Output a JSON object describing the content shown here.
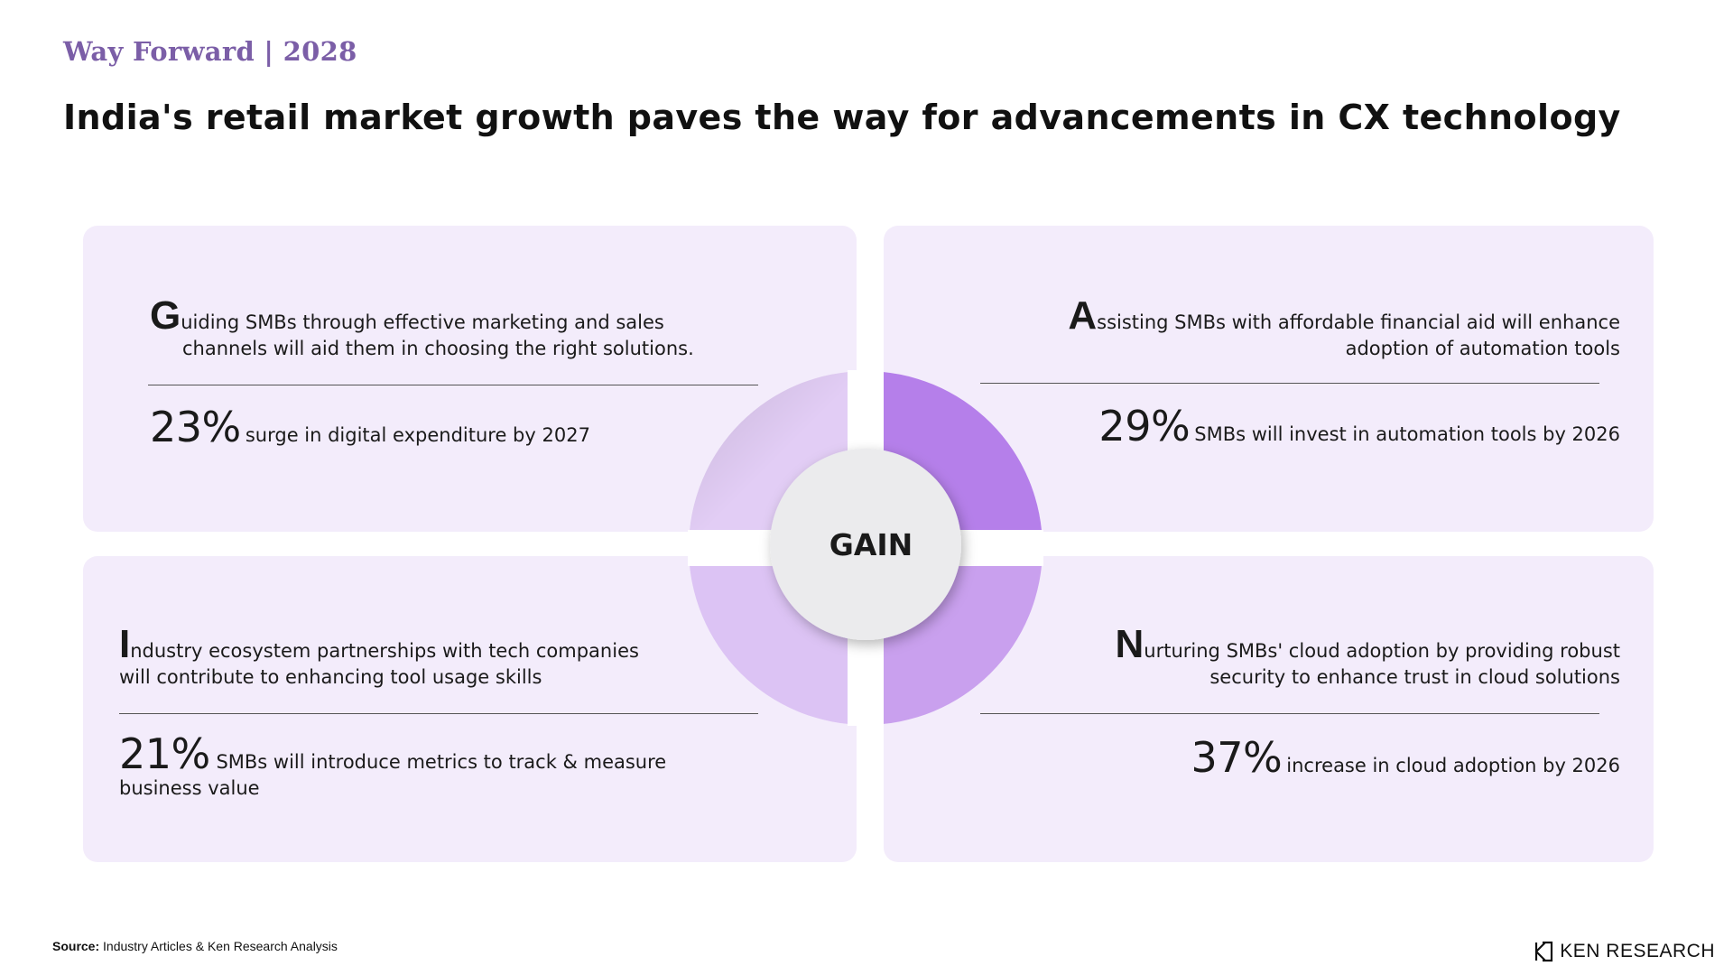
{
  "header": {
    "kicker": "Way Forward | 2028",
    "title": "India's retail market growth paves the way for advancements in CX technology"
  },
  "quadrants": [
    {
      "initial": "G",
      "line1": "uiding SMBs through effective marketing and sales",
      "line2": "channels will aid them in choosing the right solutions.",
      "stat_value": "23%",
      "stat_label": "surge in digital expenditure by 2027"
    },
    {
      "initial": "A",
      "line1": "ssisting SMBs with affordable financial aid will enhance",
      "line2": "adoption of automation tools",
      "stat_value": "29%",
      "stat_label": "SMBs will invest in automation tools by 2026"
    },
    {
      "initial": "I",
      "line1": "ndustry ecosystem partnerships with tech companies",
      "line2": "will contribute to enhancing tool usage skills",
      "stat_value": "21%",
      "stat_label": "SMBs will introduce metrics to track & measure",
      "stat_label2": "business value"
    },
    {
      "initial": "N",
      "line1": "urturing SMBs' cloud adoption by providing robust",
      "line2": "security to enhance trust in cloud solutions",
      "stat_value": "37%",
      "stat_label": "increase in cloud adoption by 2026"
    }
  ],
  "center": {
    "label": "GAIN",
    "colors": {
      "top_left": "#e2cdf5",
      "top_right": "#b57fea",
      "bottom_left": "#dcc3f4",
      "bottom_right": "#c9a0ee",
      "hub": "#ebebed"
    }
  },
  "footer": {
    "source_label": "Source:",
    "source_text": "Industry Articles & Ken Research Analysis",
    "brand": "KEN RESEARCH"
  }
}
